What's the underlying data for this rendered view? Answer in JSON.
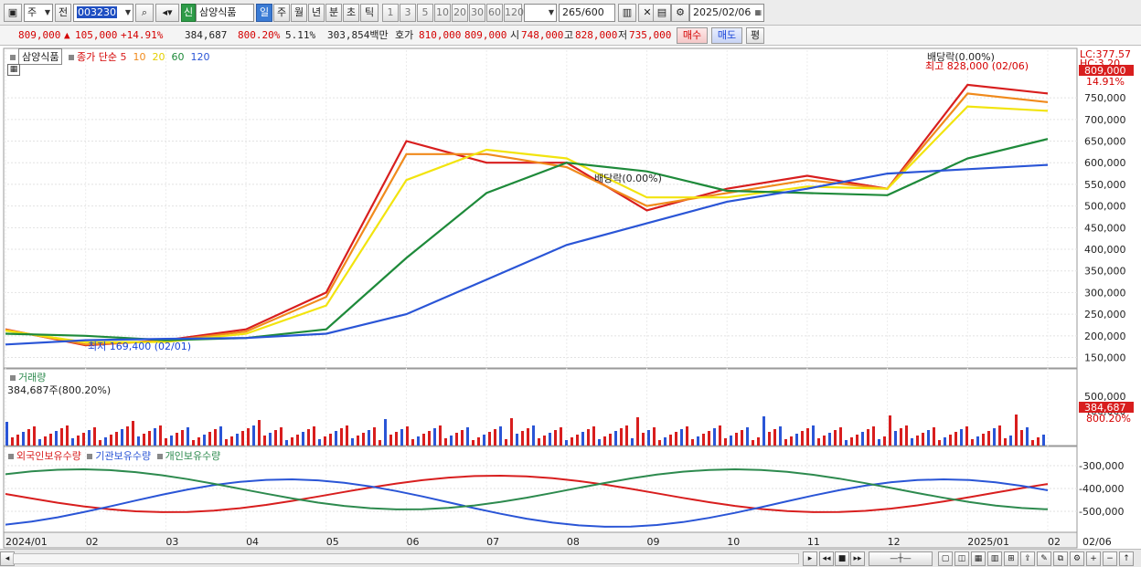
{
  "toolbar": {
    "market": "주",
    "period_prefix": "전",
    "stock_code": "003230",
    "badge": "신",
    "stock_name": "삼양식품",
    "periods": [
      "일",
      "주",
      "월",
      "년",
      "분",
      "초",
      "틱"
    ],
    "active_period": "일",
    "minute_options": [
      "1",
      "3",
      "5",
      "10",
      "20",
      "30",
      "60",
      "120"
    ],
    "count": "265",
    "count_max": "/600",
    "date": "2025/02/06"
  },
  "quote": {
    "price": "809,000",
    "change_arrow": "▲",
    "change": "105,000",
    "change_rate": "+14.91%",
    "volume": "384,687",
    "volume_rate": "800.20%",
    "turnover": "5.11%",
    "amount": "303,854백만",
    "ask_label": "호가",
    "ask": "810,000",
    "bid": "809,000",
    "open_label": "시",
    "open": "748,000",
    "high_label": "고",
    "high": "828,000",
    "low_label": "저",
    "low": "735,000",
    "buy": "매수",
    "sell": "매도",
    "eval": "평"
  },
  "price_panel": {
    "name_tag": "삼양식품",
    "legend_title": "종가 단순",
    "ma_labels": [
      "5",
      "10",
      "20",
      "60",
      "120"
    ],
    "ma_colors": [
      "#d81e1e",
      "#f08a1c",
      "#f2e40e",
      "#1e8a3a",
      "#2a55d6"
    ],
    "annot_high": "최고 828,000 (02/06)",
    "annot_low": "최저 169,400 (02/01)",
    "annot_div1": "배당락(0.00%)",
    "annot_div2": "배당락(0.00%)",
    "lc_label": "LC:377.57",
    "hc_label": "HC:3.20",
    "price_tag": "809,000",
    "rate_tag": "14.91%",
    "y_ticks": [
      "750,000",
      "700,000",
      "650,000",
      "600,000",
      "550,000",
      "500,000",
      "450,000",
      "400,000",
      "350,000",
      "300,000",
      "250,000",
      "200,000",
      "150,000"
    ]
  },
  "volume_panel": {
    "title": "거래량",
    "value_label": "384,687주(800.20%)",
    "y_ticks": [
      "500,000",
      "400,000"
    ],
    "tag_value": "384,687",
    "tag_rate": "800.20%"
  },
  "holding_panel": {
    "series_labels": [
      "외국인보유수량",
      "기관보유수량",
      "개인보유수량"
    ],
    "series_colors": [
      "#d81e1e",
      "#2a55d6",
      "#2d8a4e"
    ],
    "y_ticks": [
      "-300,000",
      "-400,000",
      "-500,000"
    ]
  },
  "x_axis": {
    "labels": [
      "2024/01",
      "02",
      "03",
      "04",
      "05",
      "06",
      "07",
      "08",
      "09",
      "10",
      "11",
      "12",
      "2025/01",
      "02"
    ],
    "right_label": "02/06"
  },
  "chart_data": {
    "type": "line",
    "ylim": [
      130000,
      860000
    ],
    "x": [
      "2024/01",
      "02",
      "03",
      "04",
      "05",
      "06",
      "07",
      "08",
      "09",
      "10",
      "11",
      "12",
      "2025/01",
      "02"
    ],
    "series": [
      {
        "name": "5",
        "values": [
          215000,
          178000,
          190000,
          215000,
          300000,
          650000,
          600000,
          600000,
          490000,
          540000,
          570000,
          540000,
          780000,
          760000
        ]
      },
      {
        "name": "10",
        "values": [
          214000,
          180000,
          188000,
          210000,
          290000,
          620000,
          620000,
          590000,
          500000,
          530000,
          560000,
          540000,
          760000,
          740000
        ]
      },
      {
        "name": "20",
        "values": [
          212000,
          185000,
          186000,
          205000,
          270000,
          560000,
          630000,
          610000,
          520000,
          520000,
          545000,
          540000,
          730000,
          720000
        ]
      },
      {
        "name": "60",
        "values": [
          205000,
          200000,
          190000,
          195000,
          215000,
          380000,
          530000,
          600000,
          580000,
          535000,
          530000,
          525000,
          610000,
          655000
        ]
      },
      {
        "name": "120",
        "values": [
          180000,
          190000,
          193000,
          195000,
          205000,
          250000,
          330000,
          410000,
          460000,
          510000,
          540000,
          575000,
          585000,
          595000
        ]
      }
    ]
  }
}
